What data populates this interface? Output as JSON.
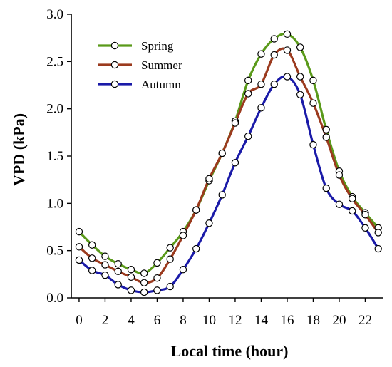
{
  "chart_data": {
    "type": "line",
    "title": "",
    "xlabel": "Local time (hour)",
    "ylabel": "VPD (kPa)",
    "xlim": [
      -0.6,
      23.4
    ],
    "ylim": [
      0.0,
      3.0
    ],
    "x_ticks": [
      0,
      2,
      4,
      6,
      8,
      10,
      12,
      14,
      16,
      18,
      20,
      22
    ],
    "x_tick_labels": [
      "0",
      "2",
      "4",
      "6",
      "8",
      "10",
      "12",
      "14",
      "16",
      "18",
      "20",
      "22"
    ],
    "y_ticks": [
      0.0,
      0.5,
      1.0,
      1.5,
      2.0,
      2.5,
      3.0
    ],
    "y_tick_labels": [
      "0.0",
      "0.5",
      "1.0",
      "1.5",
      "2.0",
      "2.5",
      "3.0"
    ],
    "grid": false,
    "legend_position": "top-left",
    "x": [
      0,
      1,
      2,
      3,
      4,
      5,
      6,
      7,
      8,
      9,
      10,
      11,
      12,
      13,
      14,
      15,
      16,
      17,
      18,
      19,
      20,
      21,
      22,
      23
    ],
    "series": [
      {
        "name": "Spring",
        "color": "#5a9a1a",
        "values": [
          0.7,
          0.56,
          0.44,
          0.36,
          0.3,
          0.26,
          0.37,
          0.53,
          0.7,
          0.93,
          1.24,
          1.53,
          1.87,
          2.3,
          2.58,
          2.74,
          2.79,
          2.65,
          2.3,
          1.78,
          1.34,
          1.07,
          0.9,
          0.74
        ]
      },
      {
        "name": "Summer",
        "color": "#9b3a1e",
        "values": [
          0.54,
          0.42,
          0.35,
          0.28,
          0.22,
          0.16,
          0.21,
          0.41,
          0.66,
          0.93,
          1.26,
          1.53,
          1.85,
          2.16,
          2.26,
          2.57,
          2.62,
          2.34,
          2.06,
          1.7,
          1.3,
          1.05,
          0.88,
          0.69
        ]
      },
      {
        "name": "Autumn",
        "color": "#1a1aa8",
        "values": [
          0.4,
          0.29,
          0.24,
          0.14,
          0.08,
          0.06,
          0.08,
          0.12,
          0.3,
          0.52,
          0.79,
          1.09,
          1.43,
          1.71,
          2.01,
          2.26,
          2.34,
          2.15,
          1.62,
          1.16,
          0.99,
          0.92,
          0.74,
          0.52
        ]
      }
    ]
  }
}
